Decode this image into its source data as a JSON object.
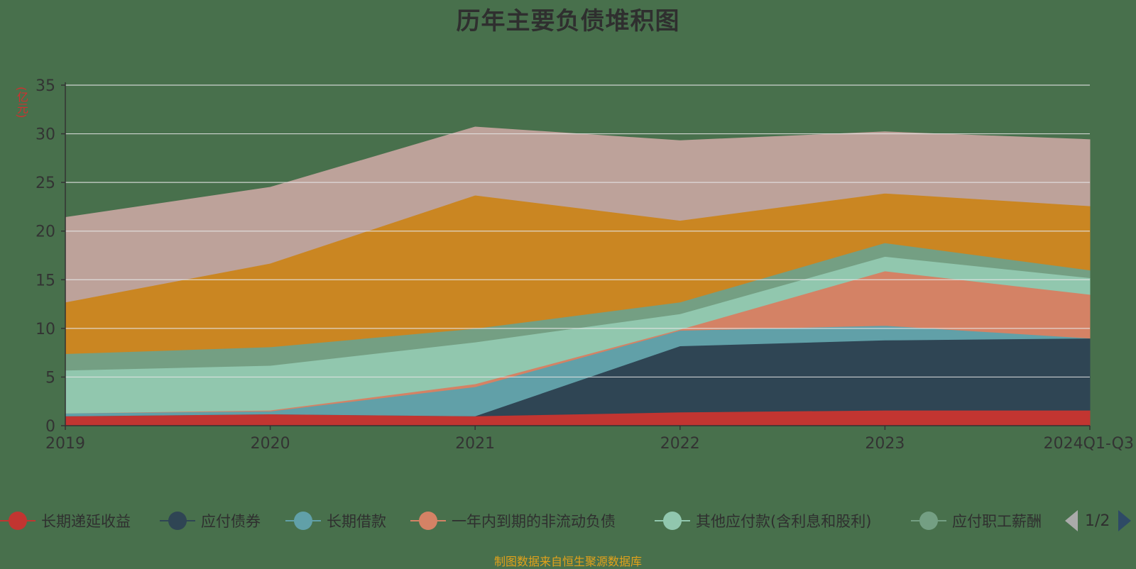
{
  "chart_data": {
    "type": "area",
    "stacked": true,
    "title": "历年主要负债堆积图",
    "ylabel": "(亿元)",
    "categories": [
      "2019",
      "2020",
      "2021",
      "2022",
      "2023",
      "2024Q1-Q3"
    ],
    "ylim": [
      0,
      35
    ],
    "yticks": [
      0,
      5,
      10,
      15,
      20,
      25,
      30,
      35
    ],
    "grid": true,
    "legend_position": "bottom",
    "series": [
      {
        "name": "长期递延收益",
        "color": "#c23531",
        "values": [
          1.0,
          1.2,
          1.0,
          1.4,
          1.6,
          1.6
        ]
      },
      {
        "name": "应付债券",
        "color": "#2f4554",
        "values": [
          0,
          0,
          0,
          6.8,
          7.2,
          7.4
        ]
      },
      {
        "name": "长期借款",
        "color": "#61a0a8",
        "values": [
          0.3,
          0.3,
          3.0,
          1.6,
          1.5,
          0
        ]
      },
      {
        "name": "一年内到期的非流动负债",
        "color": "#d48265",
        "values": [
          0,
          0.1,
          0.3,
          0.1,
          5.6,
          4.5
        ]
      },
      {
        "name": "其他应付款(含利息和股利)",
        "color": "#91c7ae",
        "values": [
          4.4,
          4.6,
          4.3,
          1.6,
          1.5,
          1.7
        ]
      },
      {
        "name": "应付职工薪酬",
        "color": "#749f83",
        "values": [
          1.7,
          1.9,
          1.4,
          1.2,
          1.4,
          0.8
        ]
      },
      {
        "name": "",
        "color": "#ca8622",
        "values": [
          5.3,
          8.6,
          13.7,
          8.4,
          5.1,
          6.6
        ]
      },
      {
        "name": "",
        "color": "#bda29a",
        "values": [
          8.7,
          7.8,
          7.0,
          8.2,
          6.3,
          6.8
        ]
      }
    ]
  },
  "legend": {
    "page": "1/2"
  },
  "source": "制图数据来自恒生聚源数据库"
}
